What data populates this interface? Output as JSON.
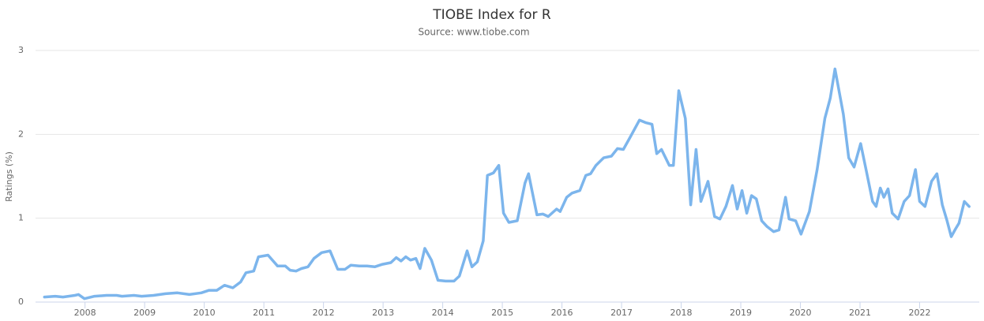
{
  "chart_data": {
    "type": "line",
    "title": "TIOBE Index for R",
    "subtitle": "Source: www.tiobe.com",
    "y_label": "Ratings (%)",
    "xlim": [
      2007.17,
      2023.0
    ],
    "xticks": [
      2008,
      2009,
      2010,
      2011,
      2012,
      2013,
      2014,
      2015,
      2016,
      2017,
      2018,
      2019,
      2020,
      2021,
      2022
    ],
    "ylim": [
      0,
      3
    ],
    "yticks": [
      0,
      1,
      2,
      3
    ],
    "grid": true,
    "series": [
      {
        "name": "R",
        "color": "#7cb5ec",
        "x": [
          2007.32,
          2007.5,
          2007.63,
          2007.83,
          2007.89,
          2007.99,
          2008.16,
          2008.36,
          2008.53,
          2008.62,
          2008.82,
          2008.95,
          2009.15,
          2009.35,
          2009.55,
          2009.75,
          2009.95,
          2010.08,
          2010.21,
          2010.34,
          2010.48,
          2010.61,
          2010.7,
          2010.83,
          2010.91,
          2011.07,
          2011.23,
          2011.36,
          2011.44,
          2011.54,
          2011.63,
          2011.74,
          2011.84,
          2011.97,
          2012.11,
          2012.24,
          2012.36,
          2012.46,
          2012.6,
          2012.73,
          2012.86,
          2012.99,
          2013.13,
          2013.22,
          2013.3,
          2013.38,
          2013.46,
          2013.55,
          2013.62,
          2013.7,
          2013.81,
          2013.92,
          2014.05,
          2014.19,
          2014.28,
          2014.41,
          2014.49,
          2014.58,
          2014.68,
          2014.75,
          2014.85,
          2014.94,
          2015.02,
          2015.11,
          2015.25,
          2015.38,
          2015.44,
          2015.58,
          2015.68,
          2015.77,
          2015.91,
          2015.97,
          2016.08,
          2016.17,
          2016.3,
          2016.4,
          2016.48,
          2016.57,
          2016.7,
          2016.83,
          2016.93,
          2017.03,
          2017.14,
          2017.3,
          2017.4,
          2017.51,
          2017.59,
          2017.67,
          2017.8,
          2017.87,
          2017.96,
          2018.07,
          2018.16,
          2018.25,
          2018.33,
          2018.45,
          2018.56,
          2018.65,
          2018.75,
          2018.86,
          2018.94,
          2019.02,
          2019.1,
          2019.18,
          2019.26,
          2019.35,
          2019.44,
          2019.55,
          2019.64,
          2019.75,
          2019.81,
          2019.92,
          2020.01,
          2020.15,
          2020.28,
          2020.41,
          2020.5,
          2020.58,
          2020.72,
          2020.81,
          2020.9,
          2021.01,
          2021.11,
          2021.21,
          2021.27,
          2021.34,
          2021.4,
          2021.47,
          2021.54,
          2021.64,
          2021.74,
          2021.83,
          2021.93,
          2022.0,
          2022.09,
          2022.2,
          2022.29,
          2022.38,
          2022.46,
          2022.53,
          2022.6,
          2022.66,
          2022.75,
          2022.83
        ],
        "values": [
          0.06,
          0.07,
          0.06,
          0.08,
          0.09,
          0.04,
          0.07,
          0.08,
          0.08,
          0.07,
          0.08,
          0.07,
          0.08,
          0.1,
          0.11,
          0.09,
          0.11,
          0.14,
          0.14,
          0.2,
          0.17,
          0.24,
          0.35,
          0.37,
          0.54,
          0.56,
          0.43,
          0.43,
          0.38,
          0.37,
          0.4,
          0.42,
          0.52,
          0.59,
          0.61,
          0.39,
          0.39,
          0.44,
          0.43,
          0.43,
          0.42,
          0.45,
          0.47,
          0.53,
          0.49,
          0.54,
          0.5,
          0.52,
          0.4,
          0.64,
          0.5,
          0.26,
          0.25,
          0.25,
          0.31,
          0.61,
          0.42,
          0.48,
          0.73,
          1.51,
          1.54,
          1.63,
          1.06,
          0.95,
          0.97,
          1.42,
          1.53,
          1.04,
          1.05,
          1.02,
          1.11,
          1.08,
          1.25,
          1.3,
          1.33,
          1.51,
          1.53,
          1.63,
          1.72,
          1.74,
          1.83,
          1.82,
          1.96,
          2.17,
          2.14,
          2.12,
          1.77,
          1.82,
          1.63,
          1.63,
          2.52,
          2.19,
          1.16,
          1.82,
          1.2,
          1.44,
          1.02,
          0.99,
          1.14,
          1.39,
          1.11,
          1.33,
          1.06,
          1.27,
          1.23,
          0.97,
          0.9,
          0.84,
          0.86,
          1.25,
          0.99,
          0.97,
          0.81,
          1.08,
          1.58,
          2.19,
          2.43,
          2.78,
          2.24,
          1.72,
          1.61,
          1.89,
          1.55,
          1.2,
          1.14,
          1.36,
          1.25,
          1.35,
          1.06,
          0.99,
          1.2,
          1.27,
          1.58,
          1.2,
          1.14,
          1.44,
          1.53,
          1.16,
          0.97,
          0.78,
          0.87,
          0.94,
          1.2,
          1.14
        ]
      }
    ]
  }
}
